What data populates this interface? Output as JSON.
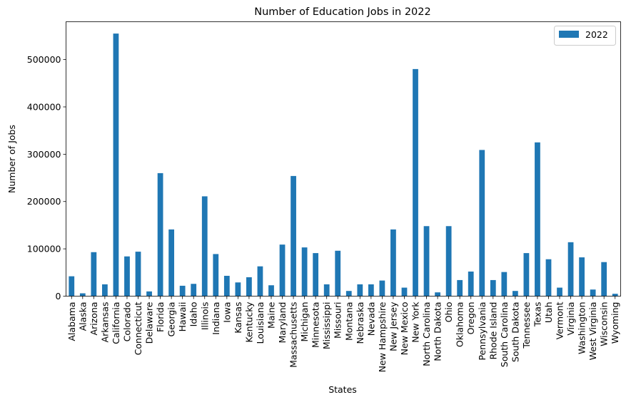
{
  "chart_data": {
    "type": "bar",
    "title": "Number of Education Jobs in 2022",
    "xlabel": "States",
    "ylabel": "Number of Jobs",
    "ylim": [
      0,
      580000
    ],
    "yticks": [
      0,
      100000,
      200000,
      300000,
      400000,
      500000
    ],
    "ytick_labels": [
      "0",
      "100000",
      "200000",
      "300000",
      "400000",
      "500000"
    ],
    "grid": false,
    "legend_position": "top-right",
    "bar_color": "#1f77b4",
    "categories": [
      "Alabama",
      "Alaska",
      "Arizona",
      "Arkansas",
      "California",
      "Colorado",
      "Connecticut",
      "Delaware",
      "Florida",
      "Georgia",
      "Hawaii",
      "Idaho",
      "Illinois",
      "Indiana",
      "Iowa",
      "Kansas",
      "Kentucky",
      "Louisiana",
      "Maine",
      "Maryland",
      "Massachusetts",
      "Michigan",
      "Minnesota",
      "Mississippi",
      "Missouri",
      "Montana",
      "Nebraska",
      "Nevada",
      "New Hampshire",
      "New Jersey",
      "New Mexico",
      "New York",
      "North Carolina",
      "North Dakota",
      "Ohio",
      "Oklahoma",
      "Oregon",
      "Pennsylvania",
      "Rhode Island",
      "South Carolina",
      "South Dakota",
      "Tennessee",
      "Texas",
      "Utah",
      "Vermont",
      "Virginia",
      "Washington",
      "West Virginia",
      "Wisconsin",
      "Wyoming"
    ],
    "series": [
      {
        "name": "2022",
        "values": [
          42000,
          6000,
          93000,
          25000,
          555000,
          84000,
          94000,
          10000,
          260000,
          141000,
          22000,
          26000,
          211000,
          89000,
          43000,
          29000,
          40000,
          63000,
          23000,
          109000,
          254000,
          103000,
          91000,
          25000,
          96000,
          11000,
          25000,
          25000,
          33000,
          141000,
          18000,
          480000,
          148000,
          8000,
          148000,
          34000,
          52000,
          309000,
          34000,
          51000,
          11000,
          91000,
          325000,
          78000,
          18000,
          114000,
          82000,
          14000,
          72000,
          5000
        ]
      }
    ]
  }
}
